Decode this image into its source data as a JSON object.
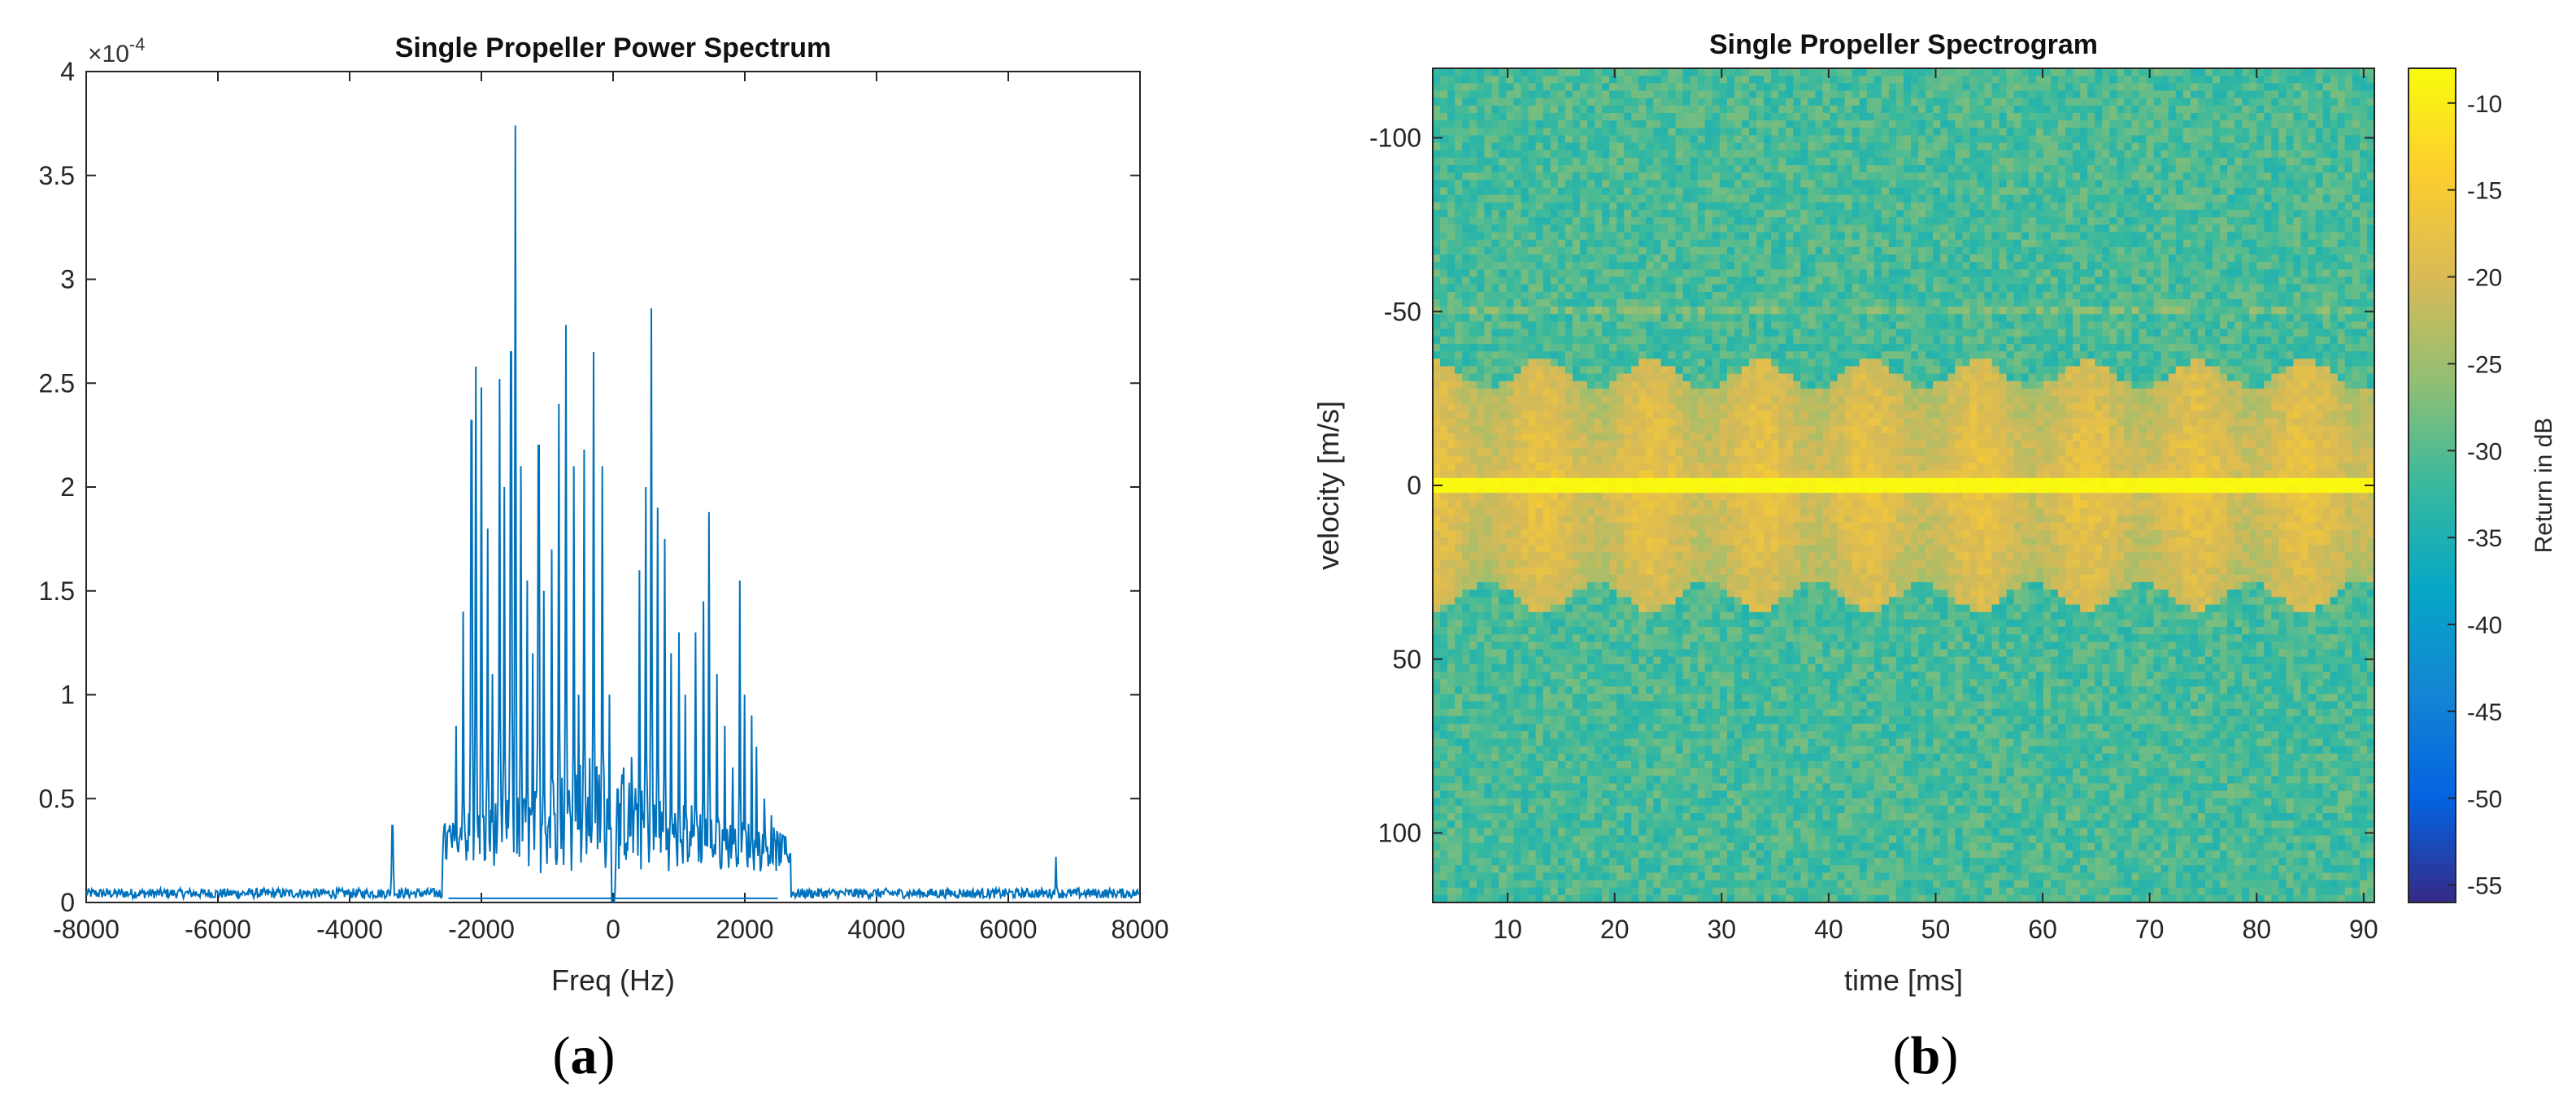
{
  "panels": [
    {
      "label_paren_open": "(",
      "label_letter": "a",
      "label_paren_close": ")"
    },
    {
      "label_paren_open": "(",
      "label_letter": "b",
      "label_paren_close": ")"
    }
  ],
  "chart_data": [
    {
      "type": "line",
      "title": "Single Propeller Power Spectrum",
      "xlabel": "Freq (Hz)",
      "ylabel": "",
      "xlim": [
        -8000,
        8000
      ],
      "ylim": [
        0,
        4
      ],
      "y_multiplier_text": "×10",
      "y_multiplier_exp": "-4",
      "x_ticks": [
        -8000,
        -6000,
        -4000,
        -2000,
        0,
        2000,
        4000,
        6000,
        8000
      ],
      "x_tick_labels": [
        "-8000",
        "-6000",
        "-4000",
        "-2000",
        "0",
        "2000",
        "4000",
        "6000",
        "8000"
      ],
      "y_ticks": [
        0,
        0.5,
        1,
        1.5,
        2,
        2.5,
        3,
        3.5,
        4
      ],
      "y_tick_labels": [
        "0",
        "0.5",
        "1",
        "1.5",
        "2",
        "2.5",
        "3",
        "3.5",
        "4"
      ],
      "line_color": "#0072bd",
      "noise_floor": 0.04,
      "band": [
        -2600,
        2700
      ],
      "peaks": [
        {
          "x": -3350,
          "y": 0.37
        },
        {
          "x": -2550,
          "y": 0.35
        },
        {
          "x": -2380,
          "y": 0.85
        },
        {
          "x": -2280,
          "y": 1.4
        },
        {
          "x": -2150,
          "y": 2.32
        },
        {
          "x": -2080,
          "y": 2.58
        },
        {
          "x": -2000,
          "y": 2.48
        },
        {
          "x": -1900,
          "y": 1.8
        },
        {
          "x": -1830,
          "y": 1.1
        },
        {
          "x": -1720,
          "y": 2.52
        },
        {
          "x": -1650,
          "y": 2.0
        },
        {
          "x": -1550,
          "y": 2.65
        },
        {
          "x": -1480,
          "y": 3.74
        },
        {
          "x": -1400,
          "y": 2.1
        },
        {
          "x": -1300,
          "y": 1.55
        },
        {
          "x": -1220,
          "y": 1.2
        },
        {
          "x": -1130,
          "y": 2.2
        },
        {
          "x": -1050,
          "y": 1.5
        },
        {
          "x": -930,
          "y": 1.7
        },
        {
          "x": -820,
          "y": 2.4
        },
        {
          "x": -720,
          "y": 2.78
        },
        {
          "x": -600,
          "y": 2.1
        },
        {
          "x": -520,
          "y": 1.0
        },
        {
          "x": -440,
          "y": 2.18
        },
        {
          "x": -300,
          "y": 2.65
        },
        {
          "x": -160,
          "y": 2.1
        },
        {
          "x": -60,
          "y": 1.0
        },
        {
          "x": 160,
          "y": 0.65
        },
        {
          "x": 280,
          "y": 0.7
        },
        {
          "x": 400,
          "y": 1.6
        },
        {
          "x": 500,
          "y": 2.0
        },
        {
          "x": 580,
          "y": 2.86
        },
        {
          "x": 680,
          "y": 1.9
        },
        {
          "x": 780,
          "y": 1.75
        },
        {
          "x": 880,
          "y": 1.2
        },
        {
          "x": 1000,
          "y": 1.3
        },
        {
          "x": 1100,
          "y": 1.0
        },
        {
          "x": 1250,
          "y": 1.3
        },
        {
          "x": 1370,
          "y": 1.45
        },
        {
          "x": 1460,
          "y": 1.88
        },
        {
          "x": 1580,
          "y": 1.1
        },
        {
          "x": 1700,
          "y": 0.85
        },
        {
          "x": 1820,
          "y": 0.65
        },
        {
          "x": 1920,
          "y": 1.55
        },
        {
          "x": 2000,
          "y": 1.0
        },
        {
          "x": 2100,
          "y": 0.9
        },
        {
          "x": 2180,
          "y": 0.75
        },
        {
          "x": 2300,
          "y": 0.5
        },
        {
          "x": 2400,
          "y": 0.42
        },
        {
          "x": 2600,
          "y": 0.25
        },
        {
          "x": 6720,
          "y": 0.22
        }
      ]
    },
    {
      "type": "heatmap",
      "title": "Single Propeller Spectrogram",
      "xlabel": "time [ms]",
      "ylabel": "velocity [m/s]",
      "xlim": [
        3,
        91
      ],
      "ylim": [
        -120,
        120
      ],
      "y_reversed": true,
      "x_ticks": [
        10,
        20,
        30,
        40,
        50,
        60,
        70,
        80,
        90
      ],
      "x_tick_labels": [
        "10",
        "20",
        "30",
        "40",
        "50",
        "60",
        "70",
        "80",
        "90"
      ],
      "y_ticks": [
        -100,
        -50,
        0,
        50,
        100
      ],
      "y_tick_labels": [
        "-100",
        "-50",
        "0",
        "50",
        "100"
      ],
      "colorbar_label": "Return in dB",
      "colorbar_range": [
        -56,
        -8
      ],
      "colorbar_ticks": [
        -10,
        -15,
        -20,
        -25,
        -30,
        -35,
        -40,
        -45,
        -50,
        -55
      ],
      "colorbar_tick_labels": [
        "-10",
        "-15",
        "-20",
        "-25",
        "-30",
        "-35",
        "-40",
        "-45",
        "-50",
        "-55"
      ],
      "colormap": "parula",
      "background_db": -31,
      "zero_line_db": -9,
      "blade_period_ms": 10.2,
      "blade_extent_m_s": 36,
      "blade_db": -17
    }
  ]
}
